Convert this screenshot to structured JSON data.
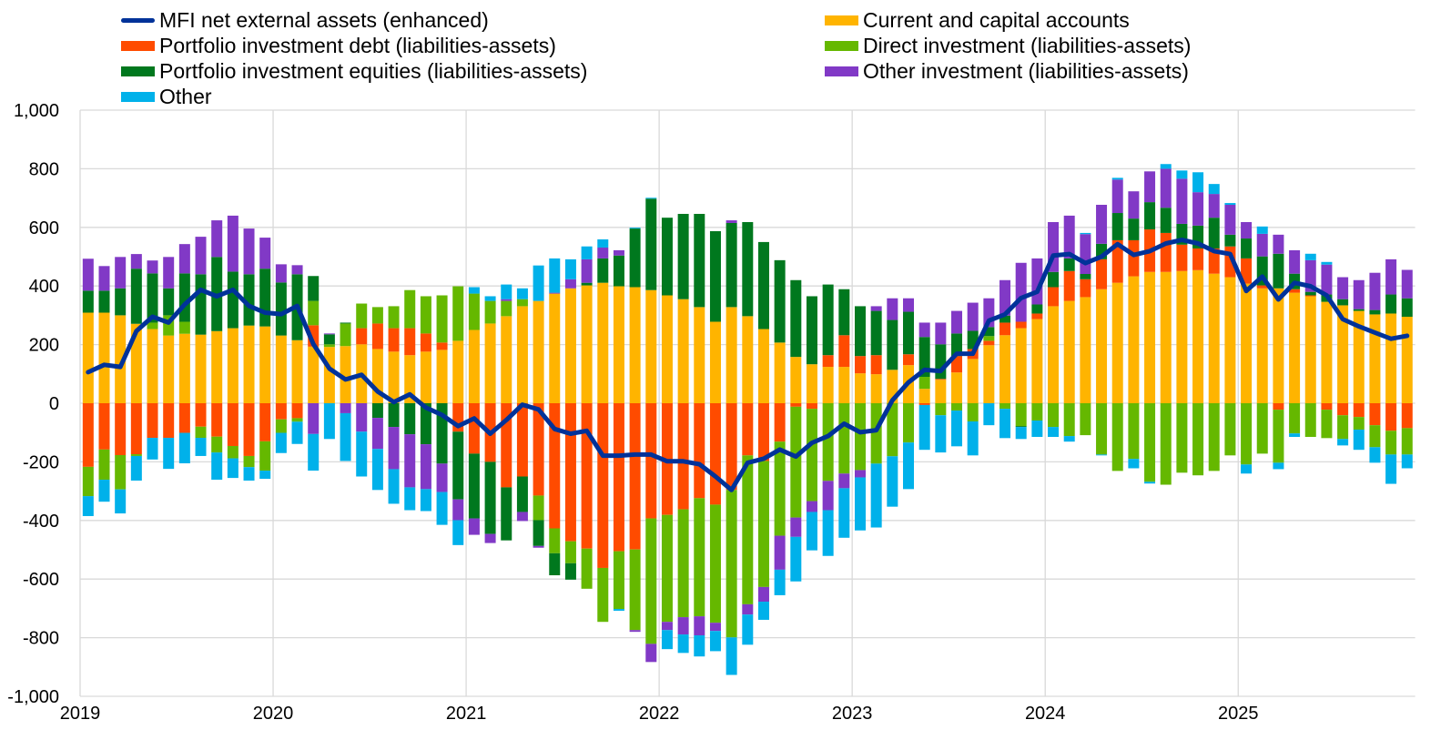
{
  "chart_data": {
    "type": "bar",
    "stacked": true,
    "title": "",
    "xlabel": "",
    "ylabel": "",
    "ylim": [
      -1000,
      1000
    ],
    "y_ticks": [
      1000,
      800,
      600,
      400,
      200,
      0,
      -200,
      -400,
      -600,
      -800,
      -1000
    ],
    "y_tick_labels": [
      "1,000",
      "800",
      "600",
      "400",
      "200",
      "0",
      "-200",
      "-400",
      "-600",
      "-800",
      "-1,000"
    ],
    "x_tick_labels": [
      "2019",
      "2020",
      "2021",
      "2022",
      "2023",
      "2024",
      "2025"
    ],
    "grid": true,
    "legend_position": "top",
    "x": [
      "2019-01",
      "2019-02",
      "2019-03",
      "2019-04",
      "2019-05",
      "2019-06",
      "2019-07",
      "2019-08",
      "2019-09",
      "2019-10",
      "2019-11",
      "2019-12",
      "2020-01",
      "2020-02",
      "2020-03",
      "2020-04",
      "2020-05",
      "2020-06",
      "2020-07",
      "2020-08",
      "2020-09",
      "2020-10",
      "2020-11",
      "2020-12",
      "2021-01",
      "2021-02",
      "2021-03",
      "2021-04",
      "2021-05",
      "2021-06",
      "2021-07",
      "2021-08",
      "2021-09",
      "2021-10",
      "2021-11",
      "2021-12",
      "2022-01",
      "2022-02",
      "2022-03",
      "2022-04",
      "2022-05",
      "2022-06",
      "2022-07",
      "2022-08",
      "2022-09",
      "2022-10",
      "2022-11",
      "2022-12",
      "2023-01",
      "2023-02",
      "2023-03",
      "2023-04",
      "2023-05",
      "2023-06",
      "2023-07",
      "2023-08",
      "2023-09",
      "2023-10",
      "2023-11",
      "2023-12",
      "2024-01",
      "2024-02",
      "2024-03",
      "2024-04",
      "2024-05",
      "2024-06",
      "2024-07",
      "2024-08",
      "2024-09",
      "2024-10",
      "2024-11",
      "2024-12",
      "2025-01",
      "2025-02",
      "2025-03",
      "2025-04",
      "2025-05",
      "2025-06",
      "2025-07",
      "2025-08",
      "2025-09",
      "2025-10",
      "2025-11"
    ],
    "series": [
      {
        "name": "Current and capital accounts",
        "type": "bar",
        "color": "#FFB400",
        "values": [
          309,
          309,
          300,
          271,
          253,
          231,
          237,
          234,
          246,
          256,
          265,
          262,
          231,
          215,
          193,
          192,
          195,
          201,
          185,
          176,
          164,
          176,
          182,
          213,
          250,
          272,
          297,
          331,
          349,
          374,
          392,
          402,
          411,
          399,
          396,
          386,
          368,
          355,
          328,
          278,
          328,
          297,
          253,
          207,
          158,
          133,
          124,
          124,
          102,
          99,
          114,
          130,
          49,
          80,
          105,
          151,
          198,
          232,
          256,
          287,
          331,
          349,
          362,
          389,
          411,
          433,
          448,
          448,
          451,
          454,
          442,
          430,
          408,
          392,
          392,
          377,
          365,
          346,
          334,
          315,
          303,
          306,
          295
        ]
      },
      {
        "name": "Portfolio investment debt (liabilities-assets)",
        "type": "bar",
        "color": "#FF4B00",
        "values": [
          -217,
          -158,
          -177,
          -174,
          -118,
          -118,
          -101,
          -80,
          -114,
          -146,
          -180,
          -130,
          -55,
          -51,
          73,
          0,
          0,
          55,
          87,
          80,
          92,
          62,
          25,
          -97,
          -172,
          -200,
          -287,
          -250,
          -315,
          -427,
          -471,
          -496,
          -562,
          -505,
          -499,
          -393,
          -381,
          -362,
          -324,
          -346,
          -296,
          -178,
          -197,
          -131,
          -12,
          -19,
          40,
          108,
          59,
          65,
          0,
          37,
          -6,
          3,
          56,
          34,
          15,
          43,
          22,
          19,
          65,
          102,
          61,
          102,
          145,
          123,
          145,
          133,
          90,
          74,
          86,
          105,
          86,
          10,
          -22,
          12,
          3,
          -22,
          -41,
          -47,
          -75,
          -94,
          -85
        ]
      },
      {
        "name": "Direct investment (liabilities-assets)",
        "type": "bar",
        "color": "#65B800",
        "values": [
          -100,
          -103,
          -117,
          -6,
          22,
          69,
          41,
          -38,
          -54,
          -42,
          -38,
          -100,
          -46,
          -12,
          83,
          9,
          77,
          84,
          56,
          75,
          130,
          127,
          161,
          186,
          124,
          77,
          52,
          24,
          -84,
          -85,
          -75,
          -137,
          -184,
          -197,
          -275,
          -428,
          -365,
          -368,
          -403,
          -403,
          -503,
          -508,
          -430,
          -321,
          -378,
          -315,
          -265,
          -240,
          -228,
          -206,
          -181,
          -134,
          41,
          -41,
          -25,
          -62,
          16,
          -19,
          -78,
          -59,
          -81,
          -112,
          -109,
          -175,
          -231,
          -190,
          -268,
          -278,
          -237,
          -246,
          -231,
          -178,
          -209,
          -172,
          -181,
          -103,
          -115,
          -97,
          -81,
          -43,
          -75,
          -81,
          -90
        ]
      },
      {
        "name": "Portfolio investment equities (liabilities-assets)",
        "type": "bar",
        "color": "#00781E",
        "values": [
          75,
          75,
          92,
          188,
          168,
          92,
          165,
          206,
          253,
          193,
          175,
          197,
          181,
          225,
          85,
          34,
          3,
          0,
          -50,
          -81,
          -106,
          -140,
          -206,
          -231,
          -221,
          -246,
          -181,
          -121,
          -88,
          -75,
          -56,
          9,
          83,
          105,
          200,
          312,
          265,
          291,
          318,
          309,
          287,
          321,
          297,
          281,
          262,
          232,
          241,
          157,
          170,
          151,
          170,
          145,
          136,
          118,
          77,
          62,
          31,
          24,
          -3,
          31,
          52,
          43,
          18,
          53,
          93,
          74,
          93,
          86,
          71,
          78,
          105,
          40,
          68,
          99,
          118,
          53,
          12,
          25,
          21,
          6,
          15,
          65,
          63
        ]
      },
      {
        "name": "Other investment (liabilities-assets)",
        "type": "bar",
        "color": "#8139C6",
        "values": [
          109,
          84,
          107,
          50,
          44,
          107,
          100,
          128,
          125,
          191,
          156,
          106,
          62,
          31,
          -105,
          3,
          -34,
          -97,
          -106,
          -144,
          -181,
          -153,
          -97,
          -71,
          -56,
          -31,
          6,
          -31,
          -6,
          3,
          31,
          80,
          37,
          18,
          -6,
          -62,
          -28,
          -59,
          -65,
          -28,
          9,
          -35,
          -50,
          -116,
          -66,
          -37,
          -100,
          -50,
          -25,
          16,
          74,
          46,
          49,
          74,
          77,
          96,
          98,
          121,
          201,
          157,
          170,
          146,
          136,
          133,
          114,
          93,
          105,
          133,
          154,
          114,
          81,
          102,
          56,
          77,
          65,
          80,
          108,
          102,
          75,
          99,
          127,
          120,
          97
        ]
      },
      {
        "name": "Other",
        "type": "bar",
        "color": "#00B1EA",
        "values": [
          -68,
          -75,
          -82,
          -84,
          -74,
          -106,
          -104,
          -62,
          -93,
          -67,
          -46,
          -28,
          -69,
          -76,
          -125,
          -122,
          -163,
          -153,
          -140,
          -118,
          -78,
          -75,
          -112,
          -85,
          22,
          16,
          50,
          37,
          121,
          117,
          68,
          44,
          28,
          -6,
          3,
          3,
          -65,
          -63,
          -72,
          -69,
          -128,
          -103,
          -62,
          -87,
          -152,
          -131,
          -156,
          -169,
          -181,
          -218,
          -172,
          -159,
          -153,
          -127,
          -122,
          -116,
          -75,
          -100,
          -41,
          -56,
          -34,
          -19,
          4,
          -3,
          6,
          -32,
          -6,
          16,
          28,
          68,
          34,
          6,
          -31,
          25,
          -22,
          -12,
          22,
          9,
          -22,
          -69,
          -53,
          -100,
          -47
        ]
      },
      {
        "name": "MFI net external assets (enhanced)",
        "type": "line",
        "color": "#003299",
        "values": [
          106,
          131,
          124,
          246,
          295,
          275,
          337,
          387,
          365,
          387,
          332,
          309,
          304,
          332,
          202,
          118,
          81,
          97,
          40,
          4,
          30,
          -15,
          -40,
          -78,
          -52,
          -104,
          -57,
          -5,
          -21,
          -88,
          -104,
          -94,
          -179,
          -179,
          -175,
          -175,
          -198,
          -198,
          -208,
          -250,
          -296,
          -203,
          -189,
          -158,
          -182,
          -135,
          -112,
          -70,
          -99,
          -92,
          10,
          71,
          114,
          110,
          169,
          169,
          282,
          303,
          359,
          380,
          504,
          509,
          478,
          500,
          543,
          506,
          519,
          545,
          557,
          545,
          519,
          509,
          383,
          432,
          354,
          411,
          399,
          368,
          287,
          262,
          241,
          220,
          230
        ]
      }
    ]
  },
  "legend": {
    "left": [
      {
        "label": "MFI net external assets (enhanced)",
        "color": "#003299",
        "kind": "line"
      },
      {
        "label": "Portfolio investment debt (liabilities-assets)",
        "color": "#FF4B00",
        "kind": "bar"
      },
      {
        "label": "Portfolio investment equities (liabilities-assets)",
        "color": "#00781E",
        "kind": "bar"
      },
      {
        "label": "Other",
        "color": "#00B1EA",
        "kind": "bar"
      }
    ],
    "right": [
      {
        "label": "Current and capital accounts",
        "color": "#FFB400",
        "kind": "bar"
      },
      {
        "label": "Direct investment (liabilities-assets)",
        "color": "#65B800",
        "kind": "bar"
      },
      {
        "label": "Other investment (liabilities-assets)",
        "color": "#8139C6",
        "kind": "bar"
      }
    ]
  }
}
